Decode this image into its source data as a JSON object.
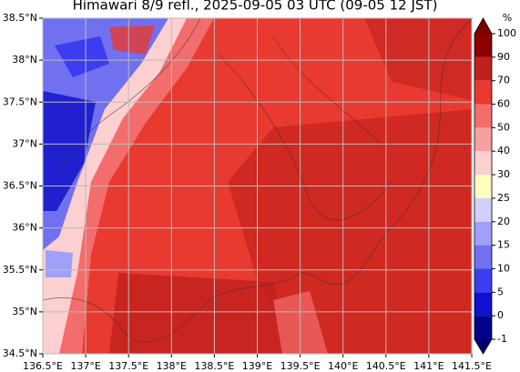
{
  "chart_data": {
    "type": "map",
    "title": "Himawari 8/9 refl., 2025-09-05 03 UTC (09-05 12 JST)",
    "xlim": [
      136.5,
      141.5
    ],
    "ylim": [
      34.5,
      38.5
    ],
    "xticks": [
      {
        "value": 136.5,
        "label": "136.5°E"
      },
      {
        "value": 137,
        "label": "137°E"
      },
      {
        "value": 137.5,
        "label": "137.5°E"
      },
      {
        "value": 138,
        "label": "138°E"
      },
      {
        "value": 138.5,
        "label": "138.5°E"
      },
      {
        "value": 139,
        "label": "139°E"
      },
      {
        "value": 139.5,
        "label": "139.5°E"
      },
      {
        "value": 140,
        "label": "140°E"
      },
      {
        "value": 140.5,
        "label": "140.5°E"
      },
      {
        "value": 141,
        "label": "141°E"
      },
      {
        "value": 141.5,
        "label": "141.5°E"
      }
    ],
    "yticks": [
      {
        "value": 34.5,
        "label": "34.5°N"
      },
      {
        "value": 35,
        "label": "35°N"
      },
      {
        "value": 35.5,
        "label": "35.5°N"
      },
      {
        "value": 36,
        "label": "36°N"
      },
      {
        "value": 36.5,
        "label": "36.5°N"
      },
      {
        "value": 37,
        "label": "37°N"
      },
      {
        "value": 37.5,
        "label": "37.5°N"
      },
      {
        "value": 38,
        "label": "38°N"
      },
      {
        "value": 38.5,
        "label": "38.5°N"
      }
    ],
    "grid": true,
    "colorbar": {
      "unit": "%",
      "ticks": [
        -1,
        0,
        5,
        10,
        15,
        20,
        25,
        30,
        40,
        50,
        60,
        70,
        90,
        100
      ],
      "colors": [
        "#00008b",
        "#1010d0",
        "#3c3cf0",
        "#7070f0",
        "#a0a0f8",
        "#d0d0ff",
        "#ffffc0",
        "#fcd0d0",
        "#f7a0a0",
        "#f26d6b",
        "#e83a30",
        "#c0201d",
        "#8b0000"
      ],
      "under_color": "#00006e",
      "over_color": "#7a0000"
    }
  }
}
